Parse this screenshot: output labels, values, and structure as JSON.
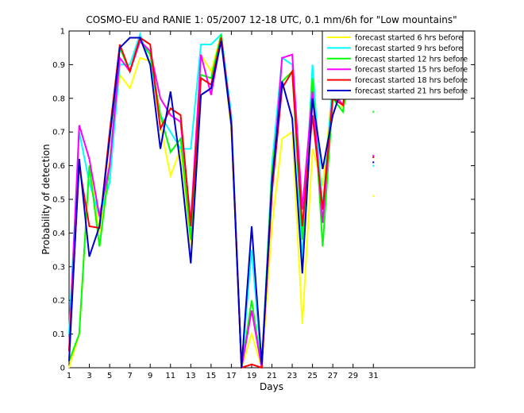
{
  "chart_data": {
    "type": "line",
    "title": "COSMO-EU and RANIE 1: 05/2007 12-18 UTC, 0.1 mm/6h for \"Low mountains\"",
    "xlabel": "Days",
    "ylabel": "Probability of detection",
    "xlim": [
      1,
      41
    ],
    "ylim": [
      0,
      1
    ],
    "xticks": [
      1,
      3,
      5,
      7,
      9,
      11,
      13,
      15,
      17,
      19,
      21,
      23,
      25,
      27,
      29,
      31
    ],
    "yticks": [
      0,
      0.1,
      0.2,
      0.3,
      0.4,
      0.5,
      0.6,
      0.7,
      0.8,
      0.9,
      1
    ],
    "ytick_labels": [
      "0",
      "0.1",
      "0.2",
      "0.3",
      "0.4",
      "0.5",
      "0.6",
      "0.7",
      "0.8",
      "0.9",
      "1"
    ],
    "grid": false,
    "legend_position": "top-right",
    "x": [
      1,
      2,
      3,
      4,
      5,
      6,
      7,
      8,
      9,
      10,
      11,
      12,
      13,
      14,
      15,
      16,
      17,
      18,
      19,
      20,
      21,
      22,
      23,
      24,
      25,
      26,
      27,
      28,
      29
    ],
    "series": [
      {
        "name": "forecast started 6 hrs before",
        "color": "#ffff00",
        "values": [
          0,
          0.1,
          0.6,
          0.4,
          0.62,
          0.87,
          0.83,
          0.92,
          0.91,
          0.72,
          0.57,
          0.65,
          0.36,
          0.93,
          0.88,
          0.99,
          0.7,
          0,
          0.1,
          0,
          0.42,
          0.68,
          0.7,
          0.13,
          0.65,
          0.54,
          0.84,
          0.77,
          0.88
        ],
        "end_marker": {
          "x": 31,
          "y": 0.51
        }
      },
      {
        "name": "forecast started 9 hrs before",
        "color": "#00ffff",
        "values": [
          0.1,
          0.7,
          0.55,
          0.45,
          0.55,
          0.9,
          0.9,
          0.99,
          0.9,
          0.75,
          0.7,
          0.65,
          0.65,
          0.96,
          0.96,
          0.99,
          0.75,
          0,
          0.35,
          0,
          0.6,
          0.92,
          0.9,
          0.32,
          0.9,
          0.47,
          0.85,
          0.9,
          0.95
        ],
        "end_marker": {
          "x": 31,
          "y": 0.6
        }
      },
      {
        "name": "forecast started 12 hrs before",
        "color": "#00ff00",
        "values": [
          0.02,
          0.1,
          0.6,
          0.36,
          0.6,
          0.95,
          0.88,
          0.97,
          0.93,
          0.75,
          0.64,
          0.68,
          0.38,
          0.87,
          0.86,
          0.99,
          0.73,
          0,
          0.2,
          0,
          0.58,
          0.85,
          0.88,
          0.38,
          0.86,
          0.36,
          0.8,
          0.76,
          0.94
        ],
        "end_marker": {
          "x": 31,
          "y": 0.76
        }
      },
      {
        "name": "forecast started 15 hrs before",
        "color": "#ff00ff",
        "values": [
          0.05,
          0.72,
          0.62,
          0.45,
          0.6,
          0.92,
          0.88,
          0.97,
          0.94,
          0.8,
          0.75,
          0.73,
          0.43,
          0.93,
          0.81,
          0.98,
          0.73,
          0,
          0.17,
          0,
          0.52,
          0.92,
          0.93,
          0.47,
          0.82,
          0.43,
          0.82,
          0.78,
          0.95
        ],
        "end_marker": {
          "x": 31,
          "y": 0.63
        }
      },
      {
        "name": "forecast started 18 hrs before",
        "color": "#ff0000",
        "values": [
          0.05,
          0.6,
          0.42,
          0.415,
          0.7,
          0.96,
          0.88,
          0.98,
          0.96,
          0.71,
          0.77,
          0.75,
          0.42,
          0.86,
          0.84,
          0.98,
          0.73,
          0,
          0.01,
          0,
          0.52,
          0.83,
          0.88,
          0.42,
          0.75,
          0.47,
          0.8,
          0.78,
          0.95
        ],
        "end_marker": {
          "x": 31,
          "y": 0.625
        }
      },
      {
        "name": "forecast started 21 hrs before",
        "color": "#0000cc",
        "values": [
          0.02,
          0.62,
          0.33,
          0.42,
          0.68,
          0.95,
          0.98,
          0.98,
          0.9,
          0.65,
          0.82,
          0.6,
          0.31,
          0.81,
          0.83,
          0.97,
          0.72,
          0,
          0.42,
          0.01,
          0.55,
          0.85,
          0.74,
          0.28,
          0.8,
          0.59,
          0.75,
          0.84,
          0.97
        ],
        "end_marker": {
          "x": 31,
          "y": 0.61
        }
      }
    ]
  }
}
